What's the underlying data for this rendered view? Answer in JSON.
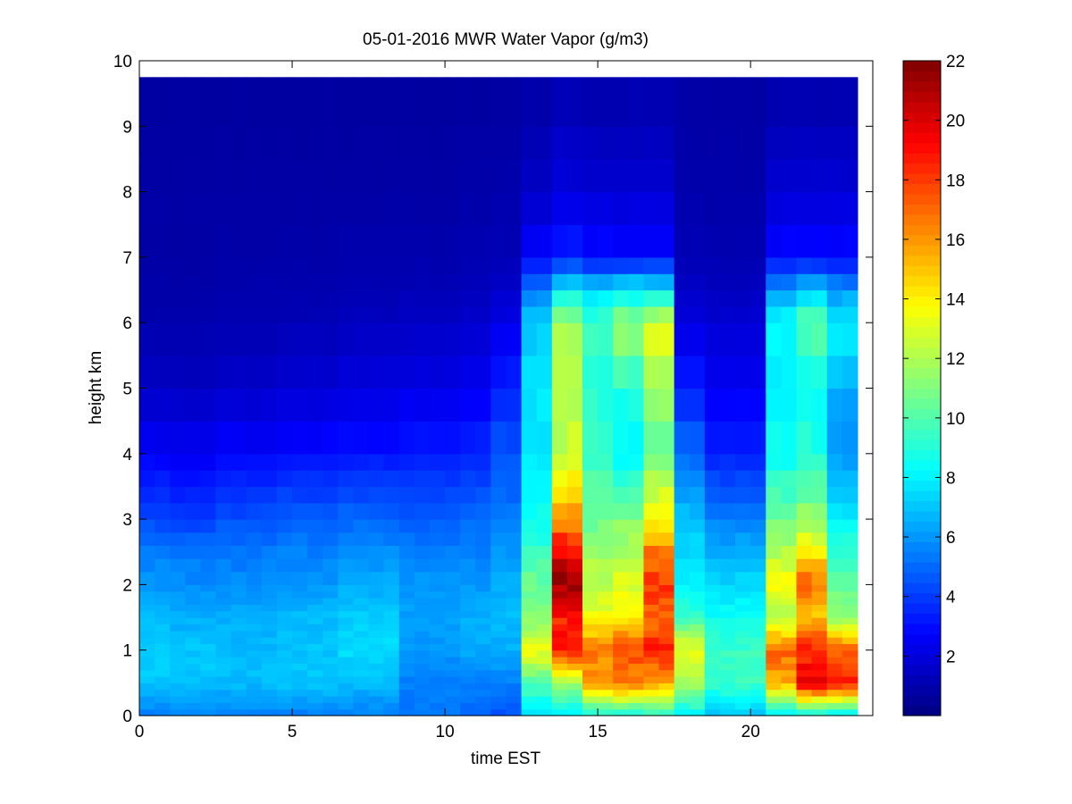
{
  "chart_data": {
    "type": "heatmap",
    "title": "05-01-2016 MWR Water Vapor (g/m3)",
    "xlabel": "time EST",
    "ylabel": "height km",
    "xlim": [
      0,
      24
    ],
    "ylim": [
      0,
      10
    ],
    "x_ticks": [
      "0",
      "5",
      "10",
      "15",
      "20"
    ],
    "y_ticks": [
      "0",
      "1",
      "2",
      "3",
      "4",
      "5",
      "6",
      "7",
      "8",
      "9",
      "10"
    ],
    "colorbar": {
      "colormap": "jet",
      "clim": [
        0,
        22
      ],
      "ticks": [
        "2",
        "4",
        "6",
        "8",
        "10",
        "12",
        "14",
        "16",
        "18",
        "20",
        "22"
      ]
    },
    "data_extent": {
      "time_min": 0,
      "time_max": 23.5,
      "height_min": 0,
      "height_max": 9.75
    },
    "time_bins": [
      0,
      0.5,
      1,
      1.5,
      2,
      2.5,
      3,
      3.5,
      4,
      4.5,
      5,
      5.5,
      6,
      6.5,
      7,
      7.5,
      8,
      8.5,
      9,
      9.5,
      10,
      10.5,
      11,
      11.5,
      12,
      12.5,
      13,
      13.5,
      14,
      14.5,
      15,
      15.5,
      16,
      16.5,
      17,
      17.5,
      18,
      18.5,
      19,
      19.5,
      20,
      20.5,
      21,
      21.5,
      22,
      22.5,
      23,
      23.5
    ],
    "height_bins": [
      0,
      0.1,
      0.2,
      0.3,
      0.4,
      0.5,
      0.6,
      0.7,
      0.8,
      0.9,
      1.0,
      1.1,
      1.2,
      1.3,
      1.4,
      1.5,
      1.6,
      1.7,
      1.8,
      1.9,
      2.0,
      2.2,
      2.4,
      2.6,
      2.8,
      3.0,
      3.25,
      3.5,
      3.75,
      4.0,
      4.5,
      5.0,
      5.5,
      6.0,
      6.25,
      6.5,
      6.75,
      7.0,
      7.5,
      8.0,
      8.5,
      9.0,
      9.75
    ],
    "profile_heights": [
      0,
      0.5,
      1,
      1.5,
      2,
      2.5,
      3,
      4,
      5,
      6,
      6.5,
      7,
      8,
      9.75
    ],
    "profiles": [
      {
        "t0": 0,
        "t1": 1,
        "values": [
          5.5,
          7.0,
          7.3,
          6.8,
          6.0,
          5.5,
          4.3,
          2.7,
          1.5,
          1.0,
          0.9,
          0.8,
          0.8,
          0.7
        ]
      },
      {
        "t0": 1,
        "t1": 2.5,
        "values": [
          5.5,
          7.0,
          7.0,
          6.5,
          5.8,
          5.3,
          4.0,
          2.5,
          1.4,
          1.0,
          0.9,
          0.8,
          0.8,
          0.7
        ]
      },
      {
        "t0": 2.5,
        "t1": 4.5,
        "values": [
          5.5,
          6.8,
          6.8,
          6.5,
          5.8,
          5.3,
          4.5,
          2.8,
          1.6,
          1.1,
          1.0,
          0.9,
          0.8,
          0.7
        ]
      },
      {
        "t0": 4.5,
        "t1": 6.5,
        "values": [
          5.5,
          7.0,
          7.0,
          6.8,
          6.0,
          5.5,
          4.8,
          3.0,
          1.8,
          1.2,
          1.0,
          0.9,
          0.8,
          0.7
        ]
      },
      {
        "t0": 6.5,
        "t1": 8.5,
        "values": [
          5.5,
          6.8,
          7.5,
          7.2,
          6.5,
          5.8,
          5.0,
          3.2,
          2.0,
          1.4,
          1.1,
          1.0,
          0.8,
          0.7
        ]
      },
      {
        "t0": 8.5,
        "t1": 10.5,
        "values": [
          5.3,
          5.5,
          6.0,
          6.2,
          6.0,
          5.5,
          4.8,
          3.4,
          2.2,
          1.5,
          1.2,
          1.0,
          0.8,
          0.7
        ]
      },
      {
        "t0": 10.5,
        "t1": 11.5,
        "values": [
          5.0,
          5.5,
          6.5,
          6.5,
          6.0,
          5.5,
          5.0,
          3.6,
          2.5,
          1.7,
          1.3,
          1.1,
          0.9,
          0.7
        ]
      },
      {
        "t0": 11.5,
        "t1": 12.5,
        "values": [
          4.5,
          5.5,
          6.5,
          6.8,
          6.5,
          6.0,
          5.3,
          4.5,
          3.5,
          2.2,
          1.6,
          1.2,
          1.0,
          0.7
        ]
      },
      {
        "t0": 12.5,
        "t1": 13.5,
        "values": [
          7.5,
          10.0,
          13.5,
          11.0,
          10.5,
          9.5,
          8.5,
          7.8,
          7.8,
          7.0,
          5.5,
          2.8,
          1.5,
          0.8
        ]
      },
      {
        "t0": 13.5,
        "t1": 14.5,
        "values": [
          8.0,
          11.5,
          19.0,
          18.5,
          21.5,
          19.5,
          16.0,
          12.5,
          12.0,
          11.5,
          8.0,
          3.5,
          2.0,
          1.0
        ]
      },
      {
        "t0": 14.5,
        "t1": 15.5,
        "values": [
          8.5,
          16.0,
          16.5,
          13.5,
          12.5,
          11.5,
          10.5,
          9.5,
          9.0,
          9.5,
          7.5,
          3.0,
          1.8,
          0.9
        ]
      },
      {
        "t0": 15.5,
        "t1": 16.5,
        "values": [
          8.5,
          16.5,
          17.5,
          14.0,
          13.0,
          12.0,
          11.0,
          8.0,
          9.0,
          11.5,
          8.0,
          3.0,
          1.8,
          0.9
        ]
      },
      {
        "t0": 16.5,
        "t1": 17.5,
        "values": [
          9.0,
          15.5,
          18.5,
          17.0,
          18.0,
          16.5,
          14.0,
          10.5,
          12.0,
          13.0,
          8.0,
          3.0,
          1.8,
          0.9
        ]
      },
      {
        "t0": 17.5,
        "t1": 18.5,
        "values": [
          8.0,
          12.0,
          13.5,
          9.5,
          8.0,
          7.5,
          7.0,
          5.0,
          3.5,
          2.0,
          1.5,
          1.2,
          1.0,
          0.8
        ]
      },
      {
        "t0": 18.5,
        "t1": 20.5,
        "values": [
          7.0,
          9.5,
          9.5,
          8.5,
          7.5,
          6.5,
          5.5,
          3.5,
          2.5,
          1.8,
          1.4,
          1.1,
          0.9,
          0.8
        ]
      },
      {
        "t0": 20.5,
        "t1": 21.5,
        "values": [
          7.5,
          15.5,
          17.0,
          12.0,
          13.5,
          12.0,
          10.5,
          8.5,
          8.0,
          8.5,
          6.0,
          3.0,
          1.8,
          0.9
        ]
      },
      {
        "t0": 21.5,
        "t1": 22.5,
        "values": [
          8.0,
          19.5,
          18.5,
          15.0,
          17.0,
          14.0,
          11.5,
          9.0,
          8.5,
          10.5,
          7.0,
          3.0,
          1.8,
          0.9
        ]
      },
      {
        "t0": 22.5,
        "t1": 23.5,
        "values": [
          7.5,
          18.5,
          17.5,
          11.0,
          10.5,
          9.5,
          8.0,
          6.0,
          6.5,
          8.0,
          6.0,
          3.0,
          1.8,
          0.9
        ]
      }
    ]
  }
}
